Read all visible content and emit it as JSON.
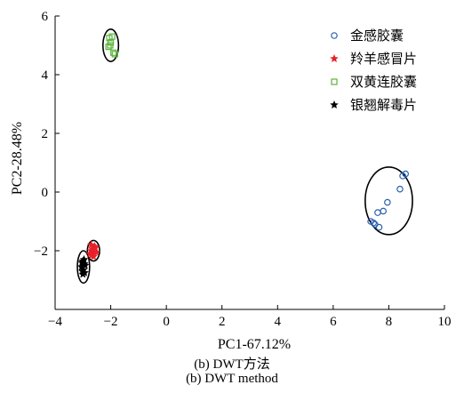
{
  "chart_data": {
    "type": "scatter",
    "xlabel": "PC1-67.12%",
    "ylabel": "PC2-28.48%",
    "xlim": [
      -4,
      10
    ],
    "ylim": [
      -4,
      6
    ],
    "xticks": [
      -4,
      -2,
      0,
      2,
      4,
      6,
      8,
      10
    ],
    "yticks": [
      -2,
      0,
      2,
      4,
      6
    ],
    "legend_position": "top-right",
    "grid": false,
    "series": [
      {
        "name": "金感胶囊",
        "marker": "circle",
        "color": "#2b5fb0",
        "points": [
          [
            7.35,
            -1.0
          ],
          [
            7.45,
            -1.05
          ],
          [
            7.5,
            -1.1
          ],
          [
            7.6,
            -0.7
          ],
          [
            7.65,
            -1.2
          ],
          [
            7.8,
            -0.65
          ],
          [
            7.95,
            -0.35
          ],
          [
            8.4,
            0.1
          ],
          [
            8.5,
            0.55
          ],
          [
            8.6,
            0.62
          ]
        ]
      },
      {
        "name": "羚羊感冒片",
        "marker": "star",
        "color": "#e8202a",
        "points": [
          [
            -2.7,
            -1.8
          ],
          [
            -2.65,
            -1.95
          ],
          [
            -2.6,
            -2.05
          ],
          [
            -2.75,
            -2.1
          ],
          [
            -2.55,
            -1.9
          ],
          [
            -2.7,
            -2.0
          ],
          [
            -2.62,
            -2.2
          ],
          [
            -2.58,
            -1.85
          ],
          [
            -2.68,
            -2.15
          ],
          [
            -2.52,
            -2.05
          ]
        ]
      },
      {
        "name": "双黄连胶囊",
        "marker": "square",
        "color": "#5ab43c",
        "points": [
          [
            -2.05,
            5.25
          ],
          [
            -2.0,
            5.1
          ],
          [
            -2.08,
            4.95
          ],
          [
            -1.95,
            5.3
          ],
          [
            -1.9,
            4.75
          ],
          [
            -1.85,
            4.7
          ],
          [
            -2.02,
            5.0
          ]
        ]
      },
      {
        "name": "银翘解毒片",
        "marker": "star",
        "color": "#000000",
        "points": [
          [
            -3.0,
            -2.35
          ],
          [
            -2.95,
            -2.45
          ],
          [
            -3.05,
            -2.55
          ],
          [
            -2.98,
            -2.65
          ],
          [
            -3.02,
            -2.7
          ],
          [
            -2.92,
            -2.5
          ],
          [
            -3.0,
            -2.8
          ],
          [
            -2.96,
            -2.3
          ],
          [
            -3.04,
            -2.4
          ],
          [
            -2.94,
            -2.75
          ]
        ]
      }
    ],
    "ellipses": [
      {
        "cx": 8.0,
        "cy": -0.3,
        "rx": 0.85,
        "ry": 1.15,
        "color": "#000000"
      },
      {
        "cx": -2.0,
        "cy": 5.0,
        "rx": 0.28,
        "ry": 0.55,
        "color": "#000000"
      },
      {
        "cx": -2.62,
        "cy": -2.0,
        "rx": 0.22,
        "ry": 0.35,
        "color": "#000000"
      },
      {
        "cx": -2.98,
        "cy": -2.55,
        "rx": 0.22,
        "ry": 0.55,
        "color": "#000000"
      }
    ]
  },
  "caption": {
    "line1": "(b) DWT方法",
    "line2": "(b) DWT method"
  }
}
